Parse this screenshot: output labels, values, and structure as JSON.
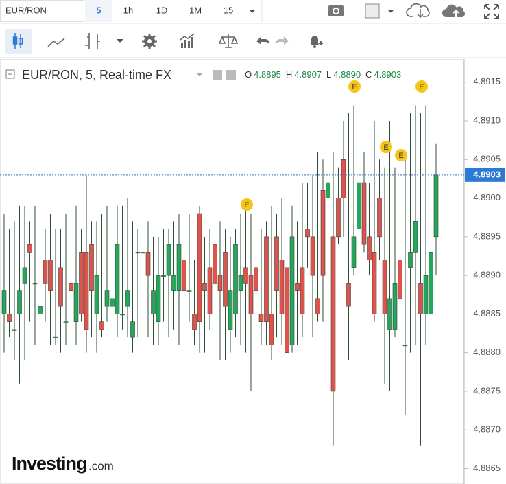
{
  "toolbar": {
    "symbol": "EUR/RON",
    "intervals": [
      "5",
      "1h",
      "1D",
      "1M",
      "15"
    ]
  },
  "logo": {
    "brand": "Investing",
    "suffix": ".com"
  },
  "chart_data": {
    "type": "candlestick",
    "title": "EUR/RON, 5, Real-time FX",
    "ohlc_legend": [
      {
        "label": "O",
        "value": "4.8895"
      },
      {
        "label": "H",
        "value": "4.8907"
      },
      {
        "label": "L",
        "value": "4.8890"
      },
      {
        "label": "C",
        "value": "4.8903"
      }
    ],
    "up_color": "#26a65b",
    "down_color": "#e0524c",
    "open": [
      4.8885,
      4.8885,
      4.8883,
      4.8885,
      4.8889,
      4.8894,
      4.8889,
      4.8885,
      4.8892,
      4.8892,
      4.8882,
      4.8891,
      4.8884,
      4.8889,
      4.8884,
      4.8893,
      4.8893,
      4.8894,
      4.8885,
      4.8884,
      4.8886,
      4.8886,
      4.8885,
      4.8885,
      4.8886,
      4.8882,
      4.8893,
      4.8893,
      4.8893,
      4.8885,
      4.8884,
      4.889,
      4.889,
      4.8888,
      4.8888,
      4.8892,
      4.8888,
      4.8885,
      4.8898,
      4.8889,
      4.8891,
      4.8894,
      4.889,
      4.8893,
      4.8883,
      4.8885,
      4.8888,
      4.8891,
      4.889,
      4.8891,
      4.8885,
      4.8895,
      4.8885,
      4.8895,
      4.8892,
      4.8891,
      4.8881,
      4.8889,
      4.8891,
      4.8896,
      4.8895,
      4.8887,
      4.8901,
      4.89,
      4.8895,
      4.89,
      4.8905,
      4.8889,
      4.8891,
      4.8896,
      4.8902,
      4.8895,
      4.8893,
      4.89,
      4.8892,
      4.8883,
      4.8883,
      4.8892,
      4.8881,
      4.8891,
      4.8893,
      4.8889,
      4.8885,
      4.8885,
      4.8895
    ],
    "high": [
      4.8898,
      4.8896,
      4.8897,
      4.8899,
      4.8899,
      4.8897,
      4.8899,
      4.8898,
      4.8896,
      4.8898,
      4.8896,
      4.8896,
      4.8898,
      4.8899,
      4.8899,
      4.8896,
      4.8903,
      4.8897,
      4.8897,
      4.8898,
      4.8899,
      4.8897,
      4.8899,
      4.8899,
      4.89,
      4.8897,
      4.8896,
      4.8898,
      4.8897,
      4.8895,
      4.8895,
      4.8896,
      4.8896,
      4.8897,
      4.8898,
      4.8896,
      4.8898,
      4.8892,
      4.8899,
      4.8895,
      4.8896,
      4.8897,
      4.8897,
      4.8896,
      4.8895,
      4.8896,
      4.8898,
      4.8899,
      4.8898,
      4.8899,
      4.8896,
      4.8897,
      4.8899,
      4.8898,
      4.89,
      4.8899,
      4.8899,
      4.8897,
      4.8902,
      4.8902,
      4.8903,
      4.8906,
      4.8905,
      4.8904,
      4.8906,
      4.8904,
      4.891,
      4.8911,
      4.8912,
      4.8906,
      4.8906,
      4.8902,
      4.891,
      4.8905,
      4.8904,
      4.891,
      4.8904,
      4.8903,
      4.8905,
      4.8911,
      4.8912,
      4.8911,
      4.8912,
      4.8912,
      4.8907
    ],
    "low": [
      4.888,
      4.8882,
      4.8879,
      4.8876,
      4.8879,
      4.8884,
      4.8881,
      4.888,
      4.8884,
      4.8881,
      4.8881,
      4.888,
      4.8881,
      4.888,
      4.8881,
      4.8884,
      4.888,
      4.8882,
      4.888,
      4.8882,
      4.8884,
      4.8882,
      4.8882,
      4.8883,
      4.8882,
      4.888,
      4.8882,
      4.8883,
      4.8882,
      4.8881,
      4.8881,
      4.8884,
      4.8882,
      4.8883,
      4.8881,
      4.8882,
      4.8884,
      4.8881,
      4.888,
      4.888,
      4.8883,
      4.8884,
      4.8879,
      4.8879,
      4.888,
      4.8882,
      4.8881,
      4.888,
      4.8875,
      4.8878,
      4.8881,
      4.8881,
      4.8879,
      4.8882,
      4.8881,
      4.888,
      4.888,
      4.8881,
      4.8882,
      4.8891,
      4.8882,
      4.8884,
      4.8884,
      4.889,
      4.8868,
      4.8894,
      4.8895,
      4.8879,
      4.889,
      4.8896,
      4.8893,
      4.889,
      4.8884,
      4.8892,
      4.8876,
      4.8875,
      4.8882,
      4.8866,
      4.8872,
      4.888,
      4.8881,
      4.8868,
      4.8881,
      4.888,
      4.889
    ],
    "close": [
      4.8888,
      4.8884,
      4.8883,
      4.8888,
      4.8891,
      4.8893,
      4.8889,
      4.8886,
      4.8889,
      4.8888,
      4.8882,
      4.8886,
      4.8884,
      4.8888,
      4.8889,
      4.8885,
      4.8883,
      4.8888,
      4.889,
      4.8883,
      4.8888,
      4.8887,
      4.8894,
      4.8885,
      4.8888,
      4.8884,
      4.8893,
      4.8893,
      4.889,
      4.8888,
      4.889,
      4.889,
      4.8894,
      4.889,
      4.8894,
      4.8888,
      4.8888,
      4.8883,
      4.8884,
      4.8888,
      4.8885,
      4.8889,
      4.8888,
      4.8886,
      4.8888,
      4.8894,
      4.889,
      4.8889,
      4.8885,
      4.8888,
      4.8884,
      4.8884,
      4.8881,
      4.8888,
      4.8885,
      4.888,
      4.8895,
      4.8888,
      4.8885,
      4.8895,
      4.889,
      4.8885,
      4.889,
      4.8902,
      4.8875,
      4.8895,
      4.89,
      4.8886,
      4.8895,
      4.8902,
      4.8894,
      4.8892,
      4.8885,
      4.8895,
      4.8885,
      4.8887,
      4.8889,
      4.8887,
      4.8881,
      4.8893,
      4.8897,
      4.8885,
      4.889,
      4.8893,
      4.8903
    ],
    "last_price": 4.8903,
    "events": [
      "E",
      "E",
      "E",
      "E",
      "E"
    ],
    "ylim": [
      4.8863,
      4.8918
    ],
    "yticks": [
      4.8865,
      {
        "value": 4.887,
        "label": "4.8870"
      },
      4.8875,
      {
        "value": 4.888,
        "label": "4.8880"
      },
      4.8885,
      {
        "value": 4.889,
        "label": "4.8890"
      },
      4.8895,
      {
        "value": 4.89,
        "label": "4.8900"
      },
      4.8905,
      {
        "value": 4.891,
        "label": "4.8910"
      },
      4.8915
    ]
  }
}
